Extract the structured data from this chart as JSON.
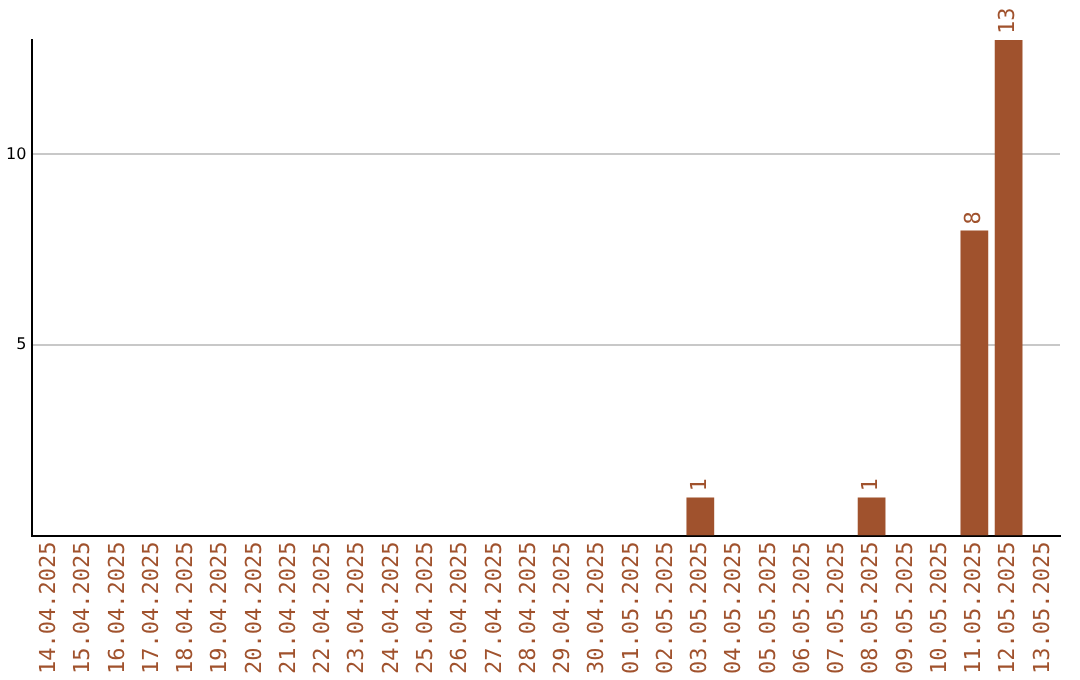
{
  "chart_data": {
    "type": "bar",
    "categories": [
      "14.04.2025",
      "15.04.2025",
      "16.04.2025",
      "17.04.2025",
      "18.04.2025",
      "19.04.2025",
      "20.04.2025",
      "21.04.2025",
      "22.04.2025",
      "23.04.2025",
      "24.04.2025",
      "25.04.2025",
      "26.04.2025",
      "27.04.2025",
      "28.04.2025",
      "29.04.2025",
      "30.04.2025",
      "01.05.2025",
      "02.05.2025",
      "03.05.2025",
      "04.05.2025",
      "05.05.2025",
      "06.05.2025",
      "07.05.2025",
      "08.05.2025",
      "09.05.2025",
      "10.05.2025",
      "11.05.2025",
      "12.05.2025",
      "13.05.2025"
    ],
    "values": [
      0,
      0,
      0,
      0,
      0,
      0,
      0,
      0,
      0,
      0,
      0,
      0,
      0,
      0,
      0,
      0,
      0,
      0,
      0,
      1,
      0,
      0,
      0,
      0,
      1,
      0,
      0,
      8,
      13,
      0
    ],
    "value_labels": [
      null,
      null,
      null,
      null,
      null,
      null,
      null,
      null,
      null,
      null,
      null,
      null,
      null,
      null,
      null,
      null,
      null,
      null,
      null,
      "1",
      null,
      null,
      null,
      null,
      "1",
      null,
      null,
      "8",
      "13",
      null
    ],
    "color": "#a0522d",
    "ylim": [
      0,
      13
    ],
    "yticks": [
      5,
      10
    ],
    "grid": "y"
  }
}
